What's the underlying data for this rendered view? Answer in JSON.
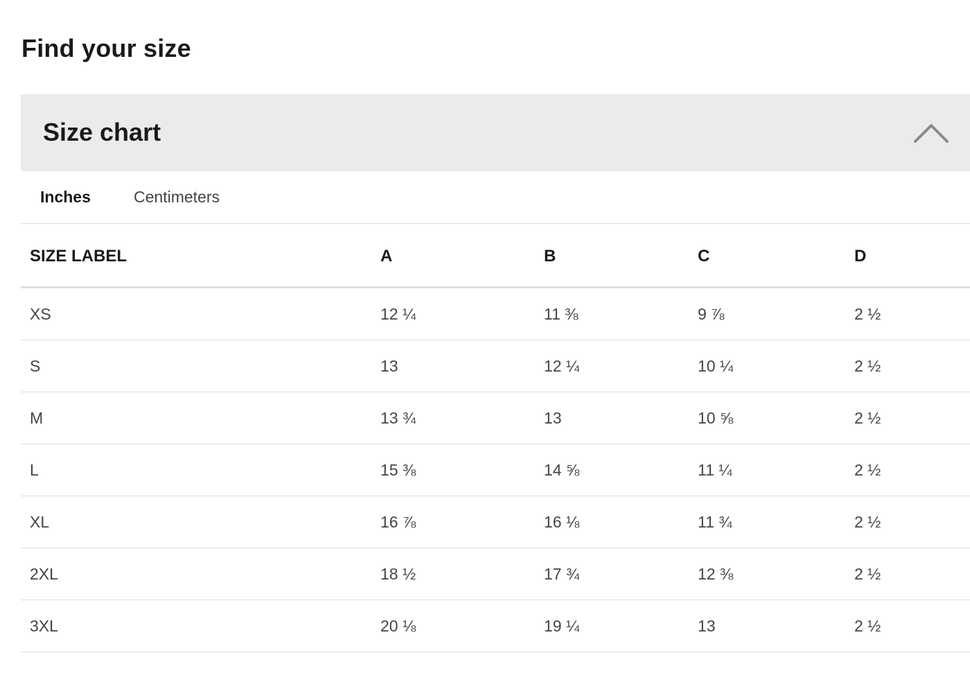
{
  "page": {
    "title": "Find your size"
  },
  "accordion": {
    "title": "Size chart",
    "toggle_icon": "chevron-up-icon"
  },
  "tabs": [
    {
      "label": "Inches",
      "active": true
    },
    {
      "label": "Centimeters",
      "active": false
    }
  ],
  "table": {
    "headers": [
      "SIZE LABEL",
      "A",
      "B",
      "C",
      "D"
    ],
    "rows": [
      [
        "XS",
        "12 ¼",
        "11 ⅜",
        "9 ⅞",
        "2 ½"
      ],
      [
        "S",
        "13",
        "12 ¼",
        "10 ¼",
        "2 ½"
      ],
      [
        "M",
        "13 ¾",
        "13",
        "10 ⅝",
        "2 ½"
      ],
      [
        "L",
        "15 ⅜",
        "14 ⅝",
        "11 ¼",
        "2 ½"
      ],
      [
        "XL",
        "16 ⅞",
        "16 ⅛",
        "11 ¾",
        "2 ½"
      ],
      [
        "2XL",
        "18 ½",
        "17 ¾",
        "12 ⅜",
        "2 ½"
      ],
      [
        "3XL",
        "20 ⅛",
        "19 ¼",
        "13",
        "2 ½"
      ]
    ]
  },
  "colors": {
    "header_bg": "#ebebeb",
    "divider": "#dddddd",
    "text_dark": "#1a1a1a",
    "text_body": "#444444",
    "chevron": "#8a8a8a"
  }
}
